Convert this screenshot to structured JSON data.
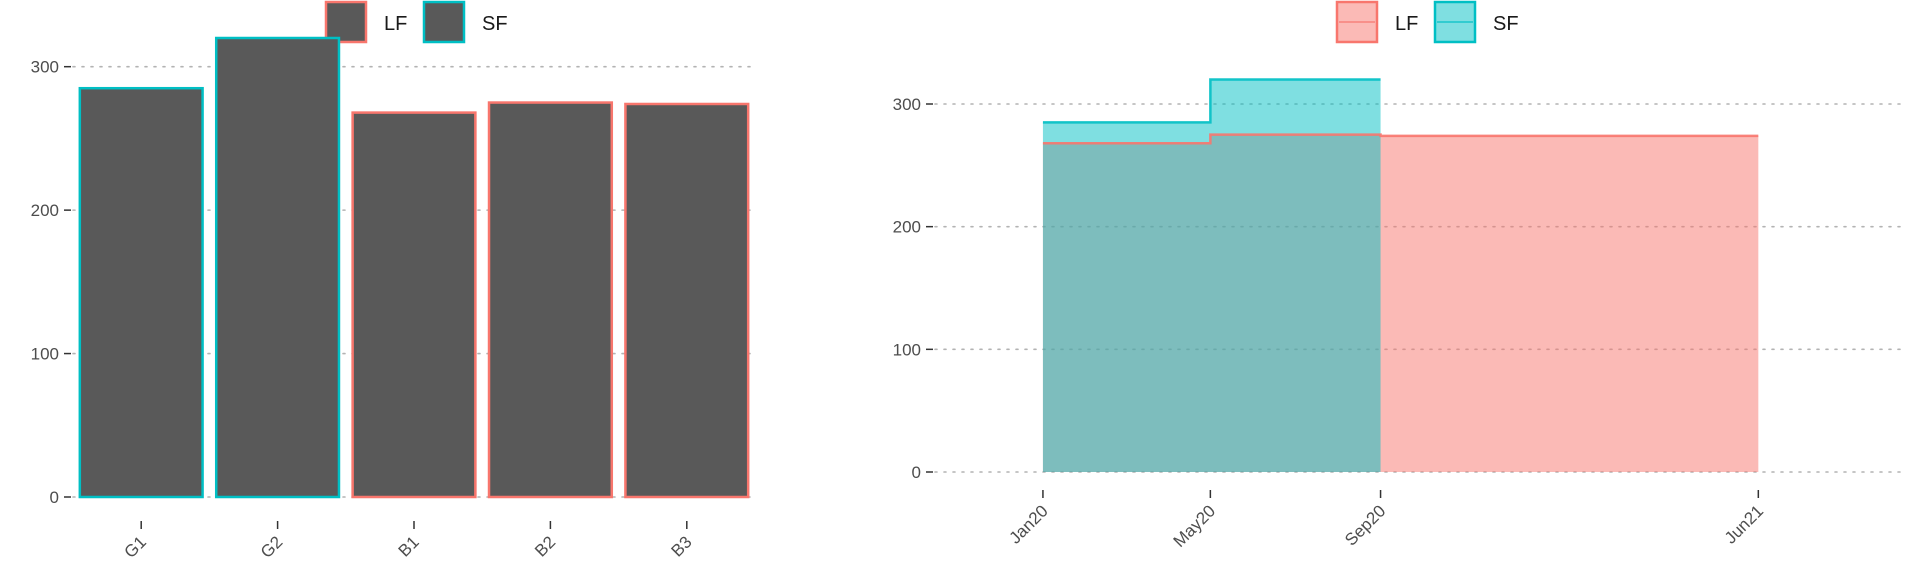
{
  "colors": {
    "LF": "#F8766D",
    "SF": "#00BFC4",
    "bar_fill": "#595959",
    "LF_area": "#F8766D",
    "SF_area": "#00BFC4"
  },
  "chart_data": [
    {
      "type": "bar",
      "categories": [
        "G1",
        "G2",
        "B1",
        "B2",
        "B3"
      ],
      "values": [
        285,
        320,
        268,
        275,
        274
      ],
      "groups": [
        "SF",
        "SF",
        "LF",
        "LF",
        "LF"
      ],
      "legend": [
        {
          "key": "LF",
          "label": "LF"
        },
        {
          "key": "SF",
          "label": "SF"
        }
      ],
      "legend_position": "top",
      "yticks": [
        0,
        100,
        200,
        300
      ],
      "ylim": [
        0,
        320
      ],
      "grid": "horizontal-dotted",
      "xlabel": "",
      "ylabel": ""
    },
    {
      "type": "area",
      "step": true,
      "x_ticks": [
        "Jan20",
        "May20",
        "Sep20",
        "Jun21"
      ],
      "x_tick_dates": [
        "2020-01-01",
        "2020-05-01",
        "2020-09-01",
        "2021-06-01"
      ],
      "xlim": [
        "2019-10-15",
        "2021-09-15"
      ],
      "series": [
        {
          "name": "LF",
          "x": [
            "2020-01-01",
            "2020-05-01",
            "2020-09-01",
            "2021-06-01"
          ],
          "values": [
            268,
            275,
            274,
            274
          ]
        },
        {
          "name": "SF",
          "x": [
            "2020-01-01",
            "2020-05-01",
            "2020-09-01"
          ],
          "values": [
            285,
            320,
            320
          ]
        }
      ],
      "legend": [
        {
          "key": "LF",
          "label": "LF"
        },
        {
          "key": "SF",
          "label": "SF"
        }
      ],
      "legend_position": "top",
      "yticks": [
        0,
        100,
        200,
        300
      ],
      "ylim": [
        0,
        320
      ],
      "grid": "horizontal-dotted",
      "xlabel": "",
      "ylabel": ""
    }
  ]
}
